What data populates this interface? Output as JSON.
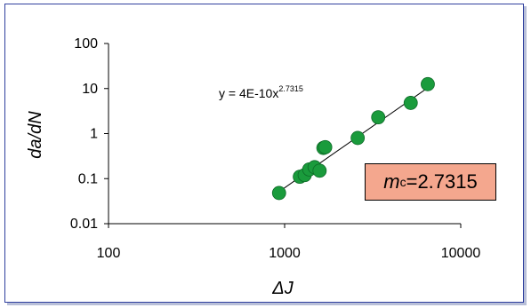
{
  "chart_data": {
    "type": "scatter",
    "x_scale": "log",
    "y_scale": "log",
    "xlim": [
      100,
      10000
    ],
    "ylim": [
      0.01,
      100
    ],
    "x_ticks": [
      "100",
      "1000",
      "10000"
    ],
    "y_ticks": [
      "0.01",
      "0.1",
      "1",
      "10",
      "100"
    ],
    "xlabel": "ΔJ",
    "ylabel": "da/dN",
    "grid": false,
    "legend": "none",
    "marker_color": "#1a9b3c",
    "trendline_color": "#000000",
    "points": [
      {
        "x": 930,
        "y": 0.048
      },
      {
        "x": 1220,
        "y": 0.11
      },
      {
        "x": 1300,
        "y": 0.12
      },
      {
        "x": 1380,
        "y": 0.16
      },
      {
        "x": 1480,
        "y": 0.18
      },
      {
        "x": 1580,
        "y": 0.15
      },
      {
        "x": 1660,
        "y": 0.48
      },
      {
        "x": 1700,
        "y": 0.5
      },
      {
        "x": 2600,
        "y": 0.8
      },
      {
        "x": 3400,
        "y": 2.3
      },
      {
        "x": 5200,
        "y": 4.8
      },
      {
        "x": 6500,
        "y": 12.5
      }
    ],
    "trendline": {
      "equation_main": "y = 4E-10x",
      "equation_exponent": "2.7315",
      "coefficient": 4e-10,
      "exponent": 2.7315,
      "x_range": [
        900,
        6800
      ]
    },
    "annotation": {
      "symbol": "m",
      "subscript": "c",
      "value": "=2.7315",
      "background": "#f4a78e"
    }
  }
}
